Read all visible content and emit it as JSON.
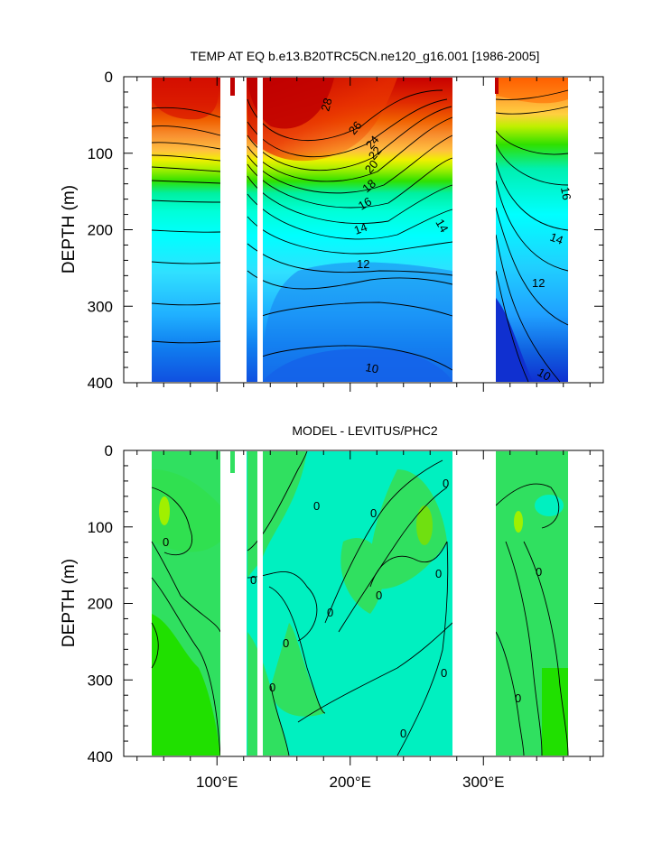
{
  "chart_data": [
    {
      "type": "contour",
      "title": "TEMP AT EQ b.e13.B20TRC5CN.ne120_g16.001 [1986-2005]",
      "ylabel": "DEPTH (m)",
      "xlabel": "",
      "x_range": [
        30,
        390
      ],
      "y_range": [
        0,
        400
      ],
      "y_reversed": true,
      "x_ticks": [
        100,
        200,
        300
      ],
      "x_tick_labels": [
        "100°E",
        "200°E",
        "300°E"
      ],
      "y_ticks": [
        0,
        100,
        200,
        300,
        400
      ],
      "y_tick_labels": [
        "0",
        "100",
        "200",
        "300",
        "400"
      ],
      "data_extent_x": [
        44,
        368
      ],
      "land_gaps_x": [
        [
          97,
          118
        ],
        [
          126,
          130
        ],
        [
          279,
          313
        ]
      ],
      "contour_levels": [
        10,
        12,
        14,
        16,
        18,
        20,
        22,
        24,
        26,
        28
      ],
      "contour_labels": [
        {
          "text": "28",
          "x": 186,
          "y": 42
        },
        {
          "text": "26",
          "x": 207,
          "y": 70
        },
        {
          "text": "24",
          "x": 226,
          "y": 88
        },
        {
          "text": "22",
          "x": 226,
          "y": 102
        },
        {
          "text": "20",
          "x": 223,
          "y": 118
        },
        {
          "text": "18",
          "x": 220,
          "y": 145
        },
        {
          "text": "16",
          "x": 207,
          "y": 170
        },
        {
          "text": "14",
          "x": 196,
          "y": 200
        },
        {
          "text": "12",
          "x": 180,
          "y": 243
        },
        {
          "text": "10",
          "x": 182,
          "y": 378
        },
        {
          "text": "14",
          "x": 272,
          "y": 185
        },
        {
          "text": "16",
          "x": 362,
          "y": 150
        },
        {
          "text": "14",
          "x": 346,
          "y": 206
        },
        {
          "text": "12",
          "x": 342,
          "y": 268
        },
        {
          "text": "10",
          "x": 349,
          "y": 383
        }
      ]
    },
    {
      "type": "contour",
      "title": "MODEL - LEVITUS/PHC2",
      "ylabel": "DEPTH (m)",
      "xlabel": "",
      "x_range": [
        30,
        390
      ],
      "y_range": [
        0,
        400
      ],
      "y_reversed": true,
      "x_ticks": [
        100,
        200,
        300
      ],
      "x_tick_labels": [
        "100°E",
        "200°E",
        "300°E"
      ],
      "y_ticks": [
        0,
        100,
        200,
        300,
        400
      ],
      "y_tick_labels": [
        "0",
        "100",
        "200",
        "300",
        "400"
      ],
      "data_extent_x": [
        44,
        368
      ],
      "land_gaps_x": [
        [
          97,
          118
        ],
        [
          126,
          130
        ],
        [
          279,
          313
        ]
      ],
      "contour_labels": [
        {
          "text": "0",
          "x": 71,
          "y": 115
        },
        {
          "text": "0",
          "x": 205,
          "y": 76
        },
        {
          "text": "0",
          "x": 214,
          "y": 86
        },
        {
          "text": "0",
          "x": 270,
          "y": 47
        },
        {
          "text": "0",
          "x": 267,
          "y": 163
        },
        {
          "text": "0",
          "x": 200,
          "y": 192
        },
        {
          "text": "0",
          "x": 185,
          "y": 214
        },
        {
          "text": "0",
          "x": 125,
          "y": 173
        },
        {
          "text": "0",
          "x": 146,
          "y": 254
        },
        {
          "text": "0",
          "x": 157,
          "y": 313
        },
        {
          "text": "0",
          "x": 238,
          "y": 372
        },
        {
          "text": "0",
          "x": 269,
          "y": 292
        },
        {
          "text": "0",
          "x": 343,
          "y": 161
        },
        {
          "text": "0",
          "x": 328,
          "y": 325
        }
      ]
    }
  ]
}
